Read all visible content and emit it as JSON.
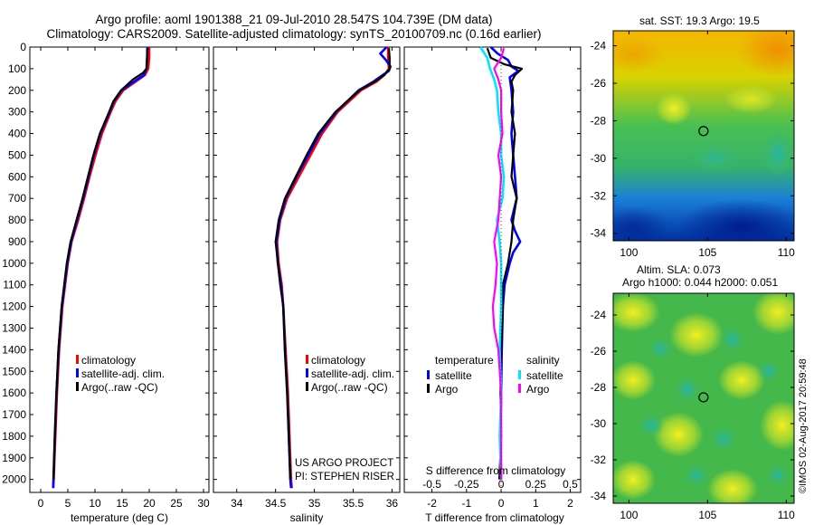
{
  "header": {
    "line1": "Argo profile: aoml 1901388_21 09-Jul-2010 28.547S 104.739E (DM data)",
    "line2": "Climatology: CARS2009. Satellite-adjusted climatology: synTS_20100709.nc (0.16d earlier)"
  },
  "footer": {
    "project": "US ARGO PROJECT",
    "pi": "PI: STEPHEN RISER",
    "credit": "©IMOS 02-Aug-2017 20:59:48"
  },
  "colors": {
    "climatology": "#ff0000",
    "satellite": "#0000ff",
    "argo": "#000000",
    "salinity_satellite": "#00e5ff",
    "salinity_argo": "#ff00ff"
  },
  "chart_data": [
    {
      "id": "temperature",
      "type": "line",
      "xlabel": "temperature (deg C)",
      "ylabel": "",
      "xlim": [
        -2,
        31
      ],
      "ylim": [
        2060,
        0
      ],
      "xticks": [
        0,
        5,
        10,
        15,
        20,
        25,
        30
      ],
      "yticks": [
        0,
        100,
        200,
        300,
        400,
        500,
        600,
        700,
        800,
        900,
        1000,
        1100,
        1200,
        1300,
        1400,
        1500,
        1600,
        1700,
        1800,
        1900,
        2000
      ],
      "legend": [
        "climatology",
        "satellite-adj. clim.",
        "Argo(..raw -QC)"
      ],
      "series": [
        {
          "name": "climatology",
          "color": "#ff0000",
          "depth": [
            0,
            50,
            100,
            130,
            160,
            200,
            250,
            300,
            400,
            500,
            600,
            700,
            800,
            900,
            1000,
            1200,
            1400,
            1600,
            1800,
            2000,
            2040
          ],
          "values": [
            20.0,
            20.0,
            19.8,
            19.2,
            17.5,
            15.2,
            13.8,
            12.9,
            11.3,
            10.1,
            9.0,
            8.0,
            6.9,
            5.7,
            5.0,
            4.0,
            3.4,
            3.0,
            2.7,
            2.4,
            2.3
          ]
        },
        {
          "name": "satellite",
          "color": "#0000ff",
          "depth": [
            0,
            50,
            100,
            130,
            160,
            200,
            250,
            300,
            400,
            500,
            600,
            700,
            800,
            900,
            1000,
            1200,
            1400,
            1600,
            1800,
            2000,
            2040
          ],
          "values": [
            19.7,
            19.6,
            19.5,
            19.0,
            17.2,
            14.9,
            13.5,
            12.7,
            11.0,
            9.8,
            8.8,
            7.8,
            6.7,
            5.6,
            4.9,
            3.9,
            3.3,
            2.9,
            2.6,
            2.35,
            2.3
          ]
        },
        {
          "name": "argo",
          "color": "#000000",
          "depth": [
            5,
            50,
            100,
            120,
            150,
            200,
            250,
            300,
            400,
            500,
            600,
            700,
            800,
            900,
            1000,
            1200,
            1400,
            1600,
            1800,
            2000
          ],
          "values": [
            19.6,
            19.6,
            19.5,
            18.8,
            17.0,
            14.8,
            13.4,
            12.6,
            10.9,
            9.7,
            8.7,
            7.7,
            6.6,
            5.5,
            4.8,
            3.85,
            3.25,
            2.9,
            2.6,
            2.35
          ]
        }
      ]
    },
    {
      "id": "salinity",
      "type": "line",
      "xlabel": "salinity",
      "ylabel": "",
      "xlim": [
        33.7,
        36.1
      ],
      "ylim": [
        2060,
        0
      ],
      "xticks": [
        34,
        34.5,
        35,
        35.5,
        36
      ],
      "legend": [
        "climatology",
        "satellite-adj. clim.",
        "Argo(..raw -QC)"
      ],
      "series": [
        {
          "name": "climatology",
          "color": "#ff0000",
          "depth": [
            0,
            50,
            100,
            130,
            160,
            200,
            300,
            400,
            500,
            600,
            700,
            800,
            900,
            1000,
            1100,
            1200,
            1400,
            1600,
            1800,
            2000,
            2040
          ],
          "values": [
            35.95,
            35.95,
            35.96,
            35.9,
            35.8,
            35.6,
            35.3,
            35.1,
            34.95,
            34.8,
            34.65,
            34.56,
            34.52,
            34.54,
            34.58,
            34.6,
            34.63,
            34.66,
            34.68,
            34.7,
            34.71
          ]
        },
        {
          "name": "satellite",
          "color": "#0000ff",
          "depth": [
            0,
            30,
            60,
            90,
            110,
            130,
            160,
            200,
            300,
            400,
            500,
            600,
            700,
            800,
            900,
            1000,
            1100,
            1200,
            1400,
            1600,
            1800,
            2000,
            2040
          ],
          "values": [
            35.93,
            35.85,
            35.92,
            35.98,
            35.96,
            35.88,
            35.76,
            35.57,
            35.28,
            35.07,
            34.92,
            34.77,
            34.63,
            34.55,
            34.51,
            34.53,
            34.57,
            34.6,
            34.62,
            34.65,
            34.67,
            34.69,
            34.7
          ]
        },
        {
          "name": "argo",
          "color": "#000000",
          "depth": [
            5,
            50,
            100,
            130,
            160,
            200,
            300,
            400,
            500,
            600,
            700,
            800,
            900,
            1000,
            1100,
            1200,
            1400,
            1600,
            1800,
            2000
          ],
          "values": [
            35.96,
            35.97,
            35.97,
            35.9,
            35.78,
            35.58,
            35.27,
            35.05,
            34.9,
            34.76,
            34.62,
            34.54,
            34.5,
            34.53,
            34.56,
            34.6,
            34.62,
            34.65,
            34.67,
            34.69
          ]
        }
      ]
    },
    {
      "id": "difference",
      "type": "line",
      "xlabel": "T difference from climatology",
      "xlabel2": "S difference from climatology",
      "xlim": [
        -2.8,
        2.3
      ],
      "ylim": [
        2060,
        0
      ],
      "xticks_T": [
        -2,
        -1,
        0,
        1,
        2
      ],
      "xticks_S": [
        -0.5,
        -0.25,
        0,
        0.25,
        0.5
      ],
      "xticks_S_labels": [
        "-0.5",
        "-0.25",
        "0",
        "0.25",
        "0.5"
      ],
      "legend_temperature_title": "temperature",
      "legend_salinity_title": "salinity",
      "legend": [
        "satellite",
        "Argo",
        "satellite",
        "Argo"
      ],
      "series": [
        {
          "name": "T satellite",
          "color": "#0000ff",
          "depth": [
            0,
            30,
            60,
            90,
            110,
            140,
            200,
            300,
            400,
            500,
            600,
            700,
            800,
            850,
            900,
            950,
            1000,
            1100,
            1200,
            1400,
            1600,
            1800,
            2000
          ],
          "values": [
            -0.3,
            -0.1,
            0.2,
            0.3,
            0.5,
            0.25,
            0.3,
            0.35,
            0.3,
            0.35,
            0.4,
            0.45,
            0.3,
            0.4,
            0.55,
            0.35,
            0.25,
            0.1,
            0.05,
            0.02,
            0.0,
            -0.02,
            0.0
          ]
        },
        {
          "name": "T argo",
          "color": "#000000",
          "depth": [
            5,
            50,
            80,
            100,
            130,
            160,
            200,
            300,
            400,
            500,
            600,
            700,
            800,
            900,
            1000,
            1100,
            1200,
            1400,
            1600,
            1800,
            2000
          ],
          "values": [
            -0.4,
            -0.3,
            0.1,
            0.6,
            0.4,
            0.3,
            0.35,
            0.3,
            0.4,
            0.35,
            0.3,
            0.45,
            0.35,
            0.3,
            0.2,
            0.05,
            0.05,
            0.0,
            -0.02,
            0.0,
            -0.05
          ]
        },
        {
          "name": "S satellite",
          "color": "#00e5ff",
          "depth": [
            0,
            50,
            100,
            150,
            200,
            300,
            400,
            500,
            600,
            700,
            800,
            900,
            1000,
            1200,
            1400,
            1600,
            1800,
            2000
          ],
          "values": [
            -0.15,
            -0.1,
            -0.08,
            -0.05,
            -0.03,
            -0.02,
            0.0,
            0.0,
            0.02,
            0.01,
            -0.03,
            -0.01,
            0.0,
            0.0,
            -0.01,
            0.0,
            -0.01,
            0.0
          ]
        },
        {
          "name": "S argo",
          "color": "#ff00ff",
          "depth": [
            5,
            50,
            100,
            150,
            200,
            300,
            400,
            500,
            600,
            700,
            800,
            900,
            1000,
            1100,
            1200,
            1300,
            1400,
            1600,
            1800,
            2000
          ],
          "values": [
            0.02,
            0.0,
            -0.05,
            -0.02,
            0.0,
            0.0,
            0.01,
            -0.02,
            0.0,
            -0.01,
            -0.02,
            -0.05,
            -0.03,
            -0.04,
            -0.06,
            -0.05,
            -0.02,
            0.0,
            0.0,
            0.0
          ]
        }
      ]
    },
    {
      "id": "sst_map",
      "type": "heatmap",
      "title": "sat. SST: 19.3 Argo: 19.5",
      "xlim": [
        99,
        110.5
      ],
      "ylim": [
        -34.4,
        -23.2
      ],
      "xticks": [
        100,
        105,
        110
      ],
      "yticks": [
        -24,
        -26,
        -28,
        -30,
        -32,
        -34
      ],
      "marker": {
        "lon": 104.739,
        "lat": -28.547
      }
    },
    {
      "id": "sla_map",
      "type": "heatmap",
      "title": "Altim. SLA: 0.073",
      "title2": "Argo h1000: 0.044 h2000: 0.051",
      "xlim": [
        99,
        110.5
      ],
      "ylim": [
        -34.4,
        -22.8
      ],
      "xticks": [
        100,
        105,
        110
      ],
      "yticks": [
        -24,
        -26,
        -28,
        -30,
        -32,
        -34
      ],
      "marker": {
        "lon": 104.739,
        "lat": -28.547
      }
    }
  ]
}
